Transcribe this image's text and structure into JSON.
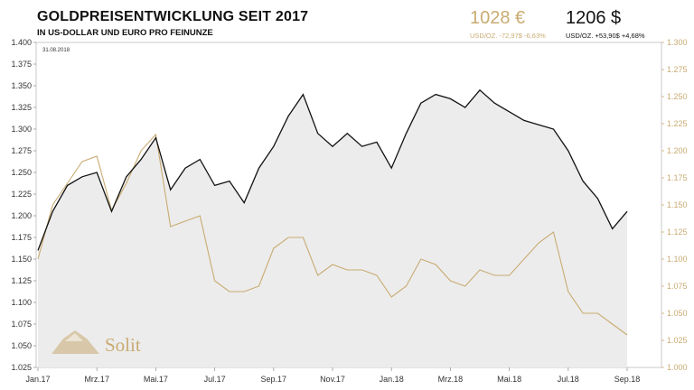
{
  "header": {
    "title": "GOLDPREISENTWICKLUNG SEIT 2017",
    "subtitle": "IN US-DOLLAR UND EURO PRO FEINUNZE",
    "eur_price": "1028 €",
    "eur_change": "USD/OZ.  -72,97$  -6,63%",
    "usd_price": "1206 $",
    "usd_change": "USD/OZ.  +53,90$  +4,68%",
    "datestamp": "31.08.2018"
  },
  "logo": {
    "text": "Solit"
  },
  "colors": {
    "usd": "#111111",
    "eur": "#c9ab72",
    "area": "#ececec",
    "grid": "#dddddd"
  },
  "chart_data": {
    "type": "line",
    "title": "GOLDPREISENTWICKLUNG SEIT 2017",
    "subtitle": "IN US-DOLLAR UND EURO PRO FEINUNZE",
    "x_tick_labels": [
      "Jan.17",
      "Mrz.17",
      "Mai.17",
      "Jul.17",
      "Sep.17",
      "Nov.17",
      "Jan.18",
      "Mrz.18",
      "Mai.18",
      "Jul.18",
      "Sep.18"
    ],
    "x_range": [
      0,
      20
    ],
    "y_left": {
      "min": 1.025,
      "max": 1.4,
      "ticks": [
        "1.025",
        "1.050",
        "1.075",
        "1.100",
        "1.125",
        "1.150",
        "1.175",
        "1.200",
        "1.225",
        "1.250",
        "1.275",
        "1.300",
        "1.325",
        "1.350",
        "1.375",
        "1.400"
      ]
    },
    "y_right": {
      "min": 1.0,
      "max": 1.3,
      "ticks": [
        "1.000",
        "1.025",
        "1.050",
        "1.075",
        "1.100",
        "1.125",
        "1.150",
        "1.175",
        "1.200",
        "1.225",
        "1.250",
        "1.275",
        "1.300"
      ]
    },
    "grid": true,
    "series": [
      {
        "name": "USD",
        "axis": "left",
        "x": [
          0,
          0.5,
          1,
          1.5,
          2,
          2.5,
          3,
          3.5,
          4,
          4.5,
          5,
          5.5,
          6,
          6.5,
          7,
          7.5,
          8,
          8.5,
          9,
          9.5,
          10,
          10.5,
          11,
          11.5,
          12,
          12.5,
          13,
          13.5,
          14,
          14.5,
          15,
          15.5,
          16,
          16.5,
          17,
          17.5,
          18,
          18.5,
          19,
          19.5,
          20
        ],
        "values": [
          1.16,
          1.205,
          1.235,
          1.245,
          1.25,
          1.205,
          1.245,
          1.265,
          1.29,
          1.23,
          1.255,
          1.265,
          1.235,
          1.24,
          1.215,
          1.255,
          1.28,
          1.315,
          1.34,
          1.295,
          1.28,
          1.295,
          1.28,
          1.285,
          1.255,
          1.295,
          1.33,
          1.34,
          1.335,
          1.325,
          1.345,
          1.33,
          1.32,
          1.31,
          1.305,
          1.3,
          1.275,
          1.24,
          1.22,
          1.185,
          1.205
        ]
      },
      {
        "name": "EUR",
        "axis": "right",
        "x": [
          0,
          0.5,
          1,
          1.5,
          2,
          2.5,
          3,
          3.5,
          4,
          4.5,
          5,
          5.5,
          6,
          6.5,
          7,
          7.5,
          8,
          8.5,
          9,
          9.5,
          10,
          10.5,
          11,
          11.5,
          12,
          12.5,
          13,
          13.5,
          14,
          14.5,
          15,
          15.5,
          16,
          16.5,
          17,
          17.5,
          18,
          18.5,
          19,
          19.5,
          20
        ],
        "values": [
          1.1,
          1.15,
          1.17,
          1.19,
          1.195,
          1.145,
          1.17,
          1.2,
          1.215,
          1.13,
          1.135,
          1.14,
          1.08,
          1.07,
          1.07,
          1.075,
          1.11,
          1.12,
          1.12,
          1.085,
          1.095,
          1.09,
          1.09,
          1.085,
          1.065,
          1.075,
          1.1,
          1.095,
          1.08,
          1.075,
          1.09,
          1.085,
          1.085,
          1.1,
          1.115,
          1.125,
          1.07,
          1.05,
          1.05,
          1.04,
          1.03
        ]
      }
    ]
  }
}
